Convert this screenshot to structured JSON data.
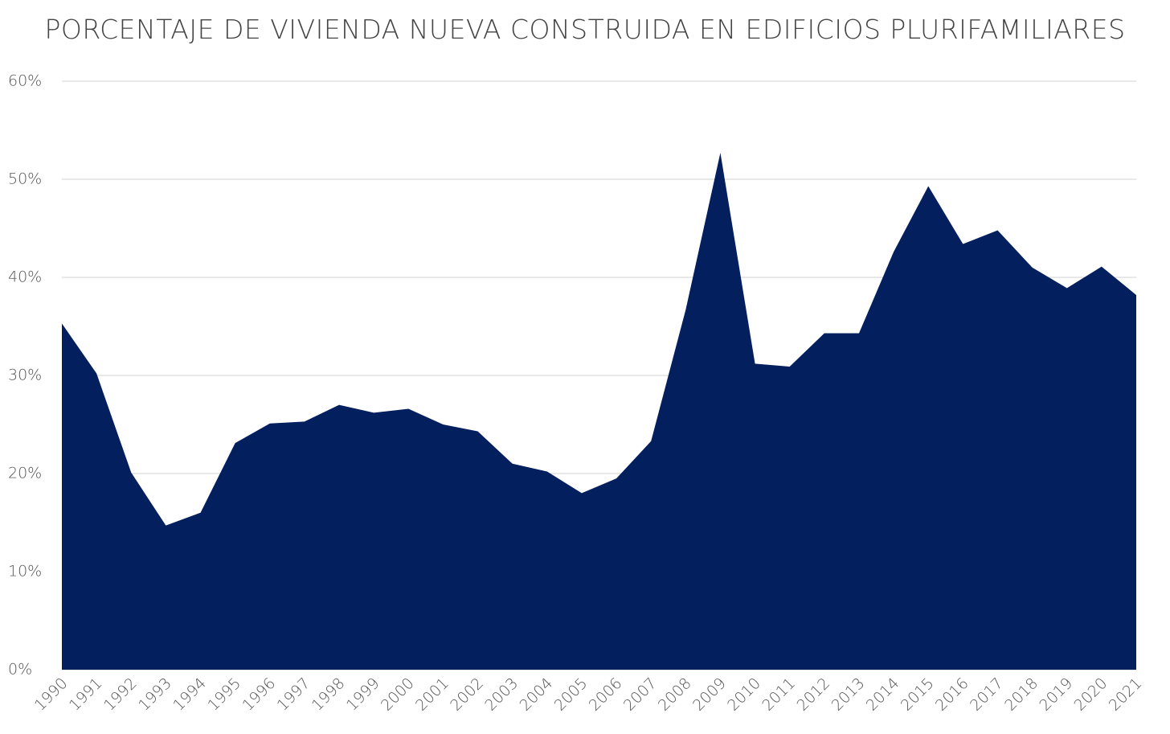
{
  "chart_data": {
    "type": "area",
    "title": "PORCENTAJE DE VIVIENDA NUEVA CONSTRUIDA EN EDIFICIOS PLURIFAMILIARES",
    "categories": [
      "1990",
      "1991",
      "1992",
      "1993",
      "1994",
      "1995",
      "1996",
      "1997",
      "1998",
      "1999",
      "2000",
      "2001",
      "2002",
      "2003",
      "2004",
      "2005",
      "2006",
      "2007",
      "2008",
      "2009",
      "2010",
      "2011",
      "2012",
      "2013",
      "2014",
      "2015",
      "2016",
      "2017",
      "2018",
      "2019",
      "2020",
      "2021"
    ],
    "values": [
      35.3,
      30.2,
      20.1,
      14.7,
      16.0,
      23.1,
      25.1,
      25.3,
      27.0,
      26.2,
      26.6,
      25.0,
      24.3,
      21.0,
      20.2,
      18.0,
      19.5,
      23.3,
      36.7,
      52.7,
      31.2,
      30.9,
      34.3,
      34.3,
      42.6,
      49.3,
      43.4,
      44.8,
      41.0,
      38.9,
      41.1,
      38.2
    ],
    "color": "#031f5e",
    "ylim": [
      0,
      60
    ],
    "yticks": [
      {
        "value": 0,
        "label": "0%"
      },
      {
        "value": 10,
        "label": "10%"
      },
      {
        "value": 20,
        "label": "20%"
      },
      {
        "value": 30,
        "label": "30%"
      },
      {
        "value": 40,
        "label": "40%"
      },
      {
        "value": 50,
        "label": "50%"
      },
      {
        "value": 60,
        "label": "60%"
      }
    ],
    "grid": true
  }
}
